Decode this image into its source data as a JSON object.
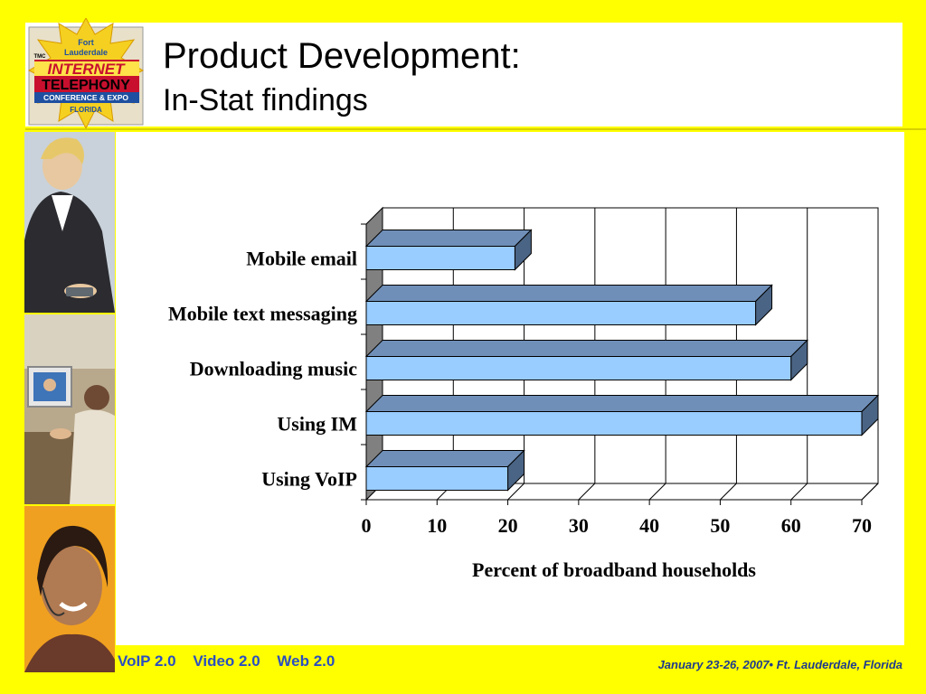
{
  "header": {
    "title_line1": "Product Development:",
    "title_line2": "In-Stat findings"
  },
  "logo": {
    "line1": "Fort",
    "line2": "Lauderdale",
    "line3": "INTERNET",
    "line4": "TELEPHONY",
    "line5": "CONFERENCE & EXPO",
    "line6": "FLORIDA",
    "badge": "TMC"
  },
  "footer": {
    "tags": [
      "VoIP 2.0",
      "Video 2.0",
      "Web 2.0"
    ],
    "event": "January 23-26, 2007• Ft. Lauderdale, Florida"
  },
  "colors": {
    "background": "#ffff00",
    "bar_front": "#99ccff",
    "bar_top": "#6f8fb8",
    "bar_side": "#4a6485",
    "footer_tags": "#2a4fc0",
    "footer_event": "#1f3b8c"
  },
  "chart_data": {
    "type": "bar",
    "orientation": "horizontal",
    "style": "3d",
    "categories": [
      "Mobile email",
      "Mobile text messaging",
      "Downloading music",
      "Using IM",
      "Using VoIP"
    ],
    "values": [
      21,
      55,
      60,
      70,
      20
    ],
    "xlabel": "Percent of broadband households",
    "xlim": [
      0,
      70
    ],
    "xticks": [
      0,
      10,
      20,
      30,
      40,
      50,
      60,
      70
    ],
    "grid": true
  }
}
